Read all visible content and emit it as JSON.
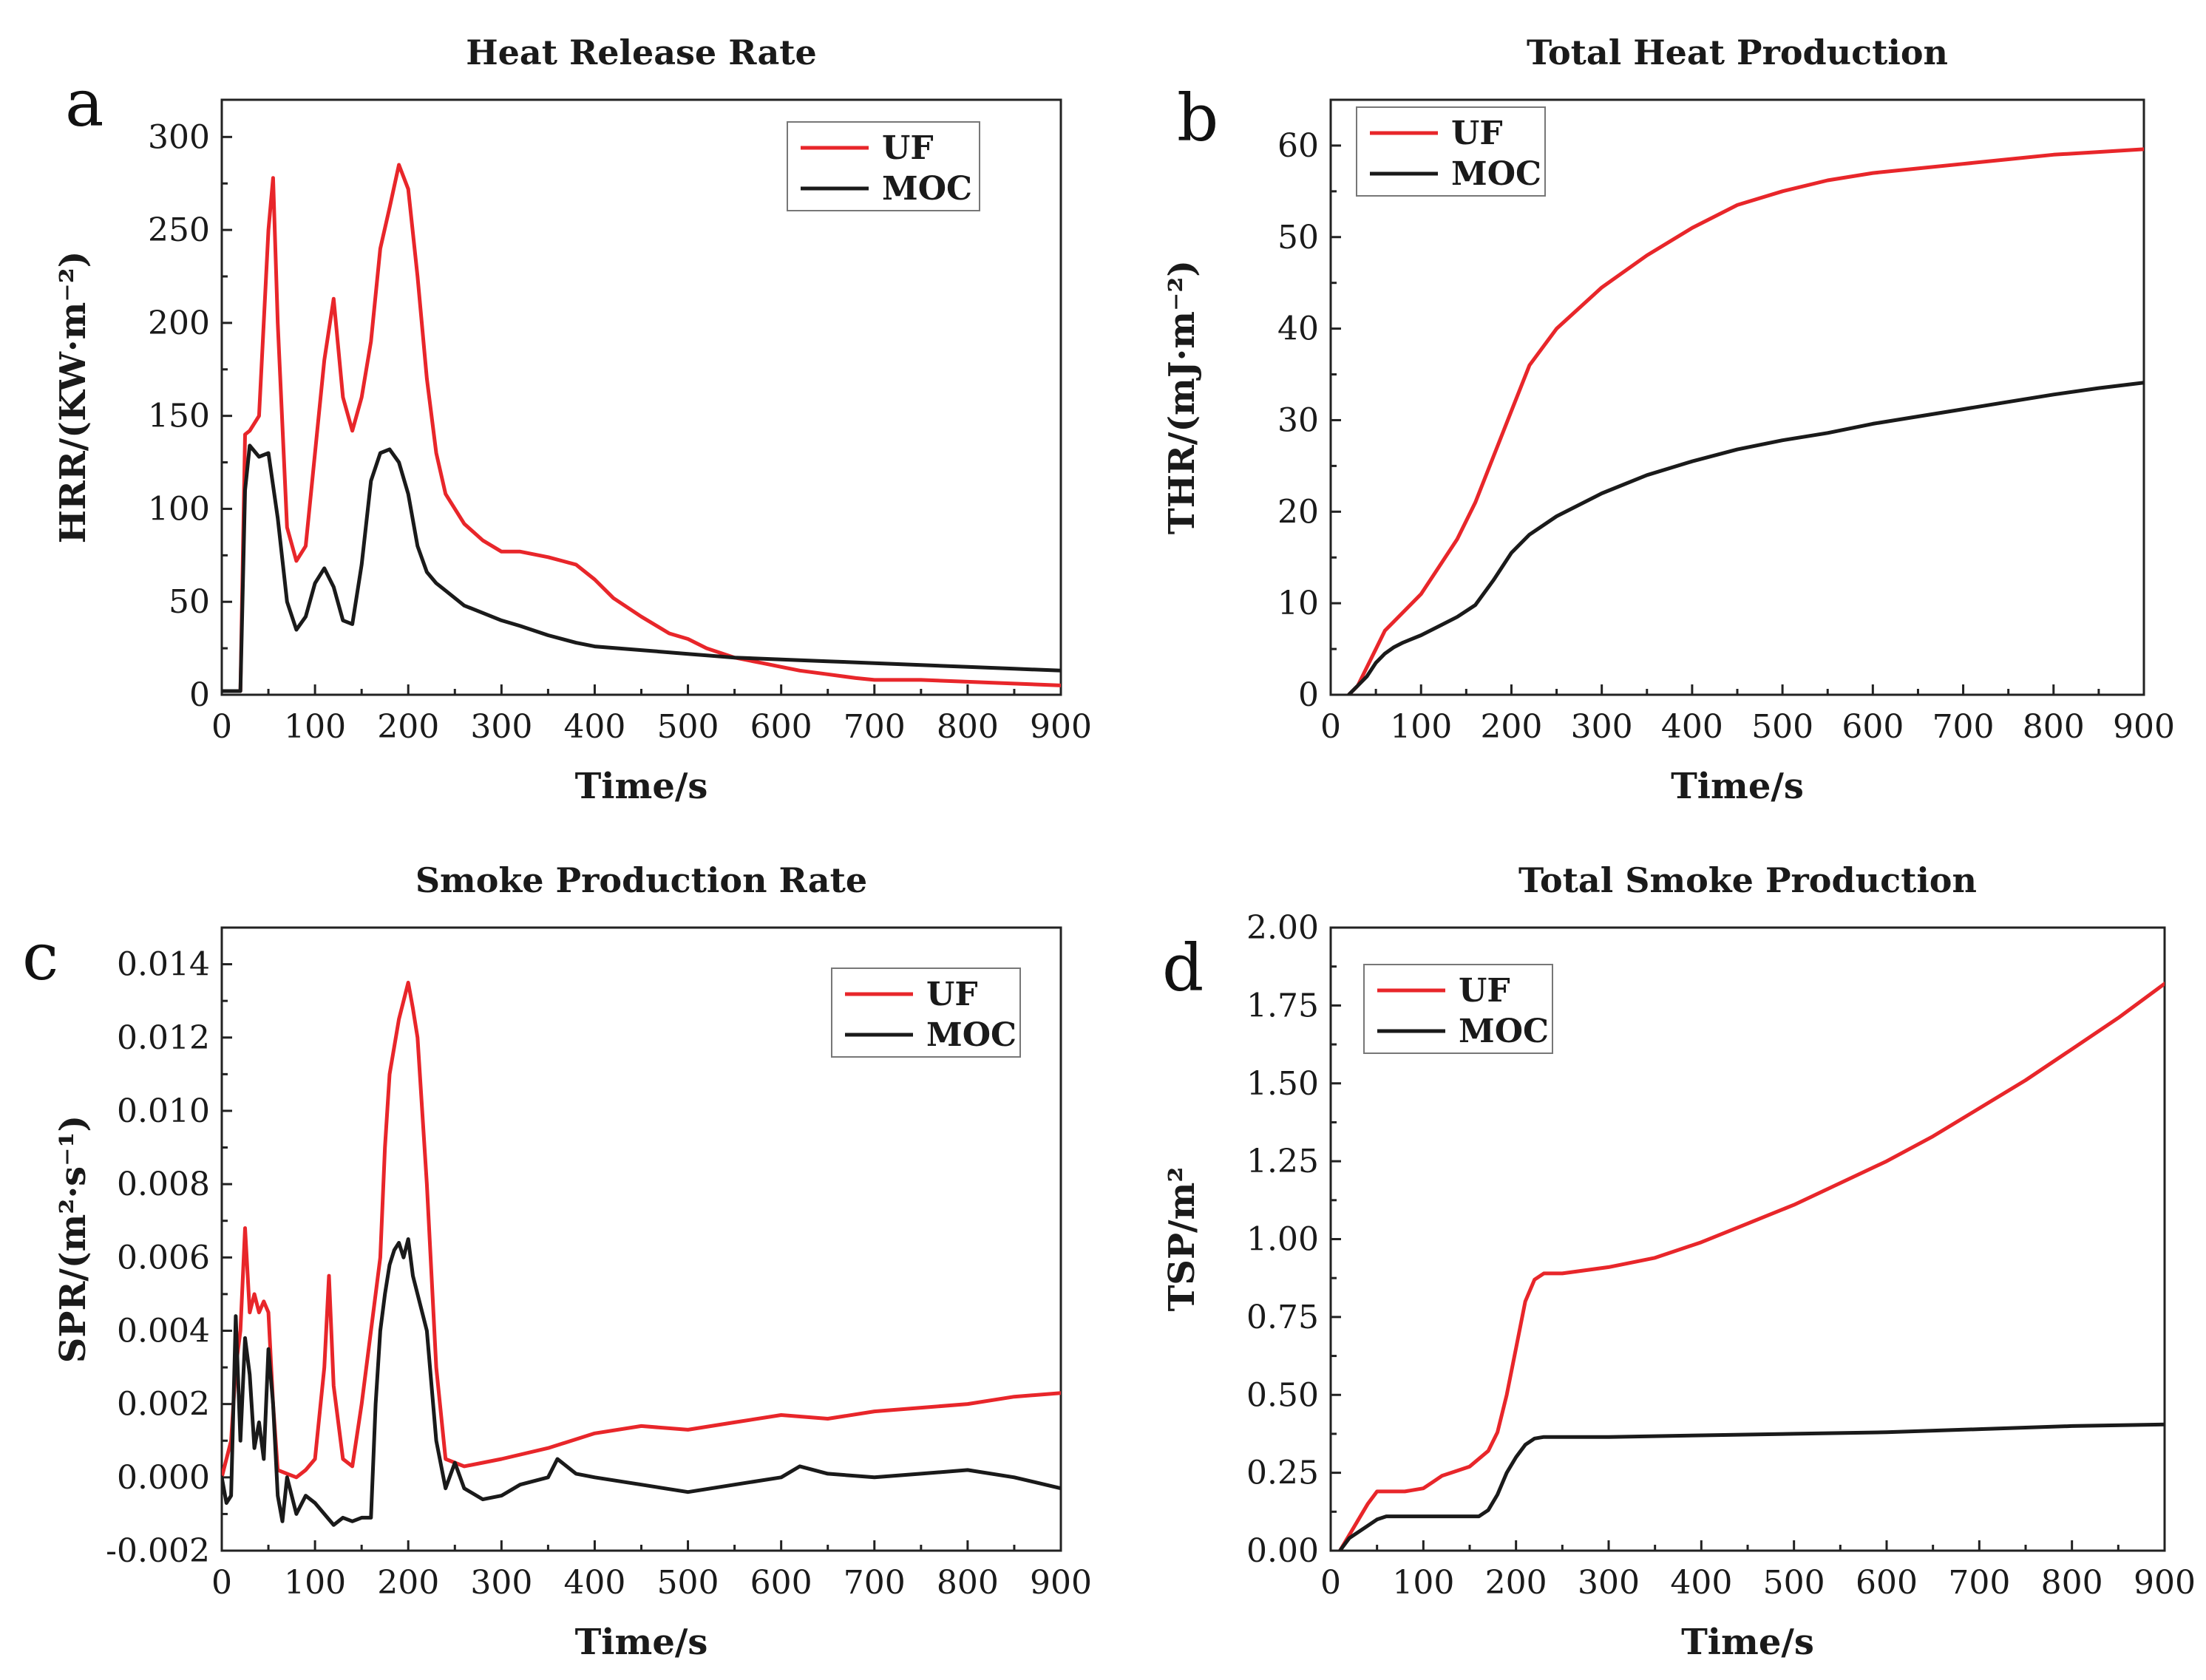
{
  "colors": {
    "uf": "#e8262a",
    "moc": "#1a1a1a"
  },
  "chart_data": [
    {
      "id": "a",
      "panel_label": "a",
      "type": "line",
      "title": "Heat Release Rate",
      "xlabel": "Time/s",
      "ylabel": "HRR/(KW·m⁻²)",
      "xlim": [
        0,
        900
      ],
      "ylim": [
        0,
        320
      ],
      "xticks": [
        0,
        100,
        200,
        300,
        400,
        500,
        600,
        700,
        800,
        900
      ],
      "yticks": [
        0,
        50,
        100,
        150,
        200,
        250,
        300
      ],
      "tick_decimals": 0,
      "legend": "top-right",
      "series": [
        {
          "name": "UF",
          "color_key": "uf",
          "x": [
            0,
            20,
            25,
            30,
            40,
            50,
            55,
            60,
            70,
            80,
            90,
            100,
            110,
            120,
            130,
            140,
            150,
            160,
            170,
            180,
            190,
            200,
            210,
            220,
            230,
            240,
            250,
            260,
            280,
            300,
            320,
            350,
            380,
            400,
            420,
            450,
            480,
            500,
            520,
            550,
            580,
            600,
            620,
            650,
            680,
            700,
            750,
            800,
            850,
            900
          ],
          "y": [
            2,
            2,
            140,
            142,
            150,
            250,
            278,
            200,
            90,
            72,
            80,
            130,
            180,
            213,
            160,
            142,
            160,
            190,
            240,
            262,
            285,
            272,
            225,
            170,
            130,
            108,
            100,
            92,
            83,
            77,
            77,
            74,
            70,
            62,
            52,
            42,
            33,
            30,
            25,
            20,
            17,
            15,
            13,
            11,
            9,
            8,
            8,
            7,
            6,
            5
          ]
        },
        {
          "name": "MOC",
          "color_key": "moc",
          "x": [
            0,
            20,
            25,
            30,
            40,
            50,
            60,
            70,
            80,
            90,
            100,
            110,
            120,
            130,
            140,
            150,
            160,
            170,
            180,
            190,
            200,
            210,
            220,
            230,
            240,
            250,
            260,
            280,
            300,
            320,
            350,
            380,
            400,
            450,
            500,
            550,
            600,
            650,
            700,
            750,
            800,
            850,
            900
          ],
          "y": [
            2,
            2,
            110,
            134,
            128,
            130,
            95,
            50,
            35,
            42,
            60,
            68,
            58,
            40,
            38,
            70,
            115,
            130,
            132,
            125,
            108,
            80,
            66,
            60,
            56,
            52,
            48,
            44,
            40,
            37,
            32,
            28,
            26,
            24,
            22,
            20,
            19,
            18,
            17,
            16,
            15,
            14,
            13
          ]
        }
      ]
    },
    {
      "id": "b",
      "panel_label": "b",
      "type": "line",
      "title": "Total Heat Production",
      "xlabel": "Time/s",
      "ylabel": "THR/(mJ·m⁻²)",
      "xlim": [
        0,
        900
      ],
      "ylim": [
        0,
        65
      ],
      "xticks": [
        0,
        100,
        200,
        300,
        400,
        500,
        600,
        700,
        800,
        900
      ],
      "yticks": [
        0,
        10,
        20,
        30,
        40,
        50,
        60
      ],
      "tick_decimals": 0,
      "legend": "top-left",
      "series": [
        {
          "name": "UF",
          "color_key": "uf",
          "x": [
            20,
            30,
            40,
            50,
            60,
            70,
            80,
            100,
            120,
            140,
            160,
            180,
            200,
            220,
            250,
            300,
            350,
            400,
            450,
            500,
            550,
            600,
            650,
            700,
            750,
            800,
            850,
            900
          ],
          "y": [
            0,
            1,
            3,
            5,
            7,
            8,
            9,
            11,
            14,
            17,
            21,
            26,
            31,
            36,
            40,
            44.5,
            48,
            51,
            53.5,
            55,
            56.2,
            57,
            57.5,
            58,
            58.5,
            59,
            59.3,
            59.6
          ]
        },
        {
          "name": "MOC",
          "color_key": "moc",
          "x": [
            20,
            30,
            40,
            50,
            60,
            70,
            80,
            100,
            120,
            140,
            160,
            180,
            200,
            220,
            250,
            300,
            350,
            400,
            450,
            500,
            550,
            600,
            650,
            700,
            750,
            800,
            850,
            900
          ],
          "y": [
            0,
            1,
            2,
            3.5,
            4.5,
            5.2,
            5.7,
            6.5,
            7.5,
            8.5,
            9.8,
            12.5,
            15.5,
            17.5,
            19.5,
            22,
            24,
            25.5,
            26.8,
            27.8,
            28.6,
            29.6,
            30.4,
            31.2,
            32,
            32.8,
            33.5,
            34.1
          ]
        }
      ]
    },
    {
      "id": "c",
      "panel_label": "c",
      "type": "line",
      "title": "Smoke Production Rate",
      "xlabel": "Time/s",
      "ylabel": "SPR/(m²·s⁻¹)",
      "xlim": [
        0,
        900
      ],
      "ylim": [
        -0.002,
        0.015
      ],
      "xticks": [
        0,
        100,
        200,
        300,
        400,
        500,
        600,
        700,
        800,
        900
      ],
      "yticks": [
        -0.002,
        0.0,
        0.002,
        0.004,
        0.006,
        0.008,
        0.01,
        0.012,
        0.014
      ],
      "tick_decimals": 3,
      "legend": "top-right",
      "series": [
        {
          "name": "UF",
          "color_key": "uf",
          "x": [
            0,
            10,
            15,
            20,
            25,
            30,
            35,
            40,
            45,
            50,
            55,
            60,
            70,
            80,
            90,
            100,
            110,
            115,
            120,
            130,
            140,
            150,
            160,
            170,
            175,
            180,
            190,
            195,
            200,
            205,
            210,
            220,
            230,
            240,
            260,
            280,
            300,
            350,
            400,
            450,
            500,
            550,
            600,
            650,
            700,
            750,
            800,
            850,
            900
          ],
          "y": [
            0,
            0.001,
            0.003,
            0.004,
            0.0068,
            0.0045,
            0.005,
            0.0045,
            0.0048,
            0.0045,
            0.002,
            0.0002,
            0.0001,
            0,
            0.0002,
            0.0005,
            0.003,
            0.0055,
            0.0025,
            0.0005,
            0.0003,
            0.002,
            0.004,
            0.006,
            0.009,
            0.011,
            0.0125,
            0.013,
            0.0135,
            0.0128,
            0.012,
            0.008,
            0.003,
            0.0005,
            0.0003,
            0.0004,
            0.0005,
            0.0008,
            0.0012,
            0.0014,
            0.0013,
            0.0015,
            0.0017,
            0.0016,
            0.0018,
            0.0019,
            0.002,
            0.0022,
            0.0023
          ]
        },
        {
          "name": "MOC",
          "color_key": "moc",
          "x": [
            0,
            5,
            10,
            15,
            20,
            25,
            30,
            35,
            40,
            45,
            50,
            55,
            60,
            65,
            70,
            80,
            90,
            100,
            110,
            120,
            130,
            140,
            150,
            160,
            165,
            170,
            175,
            180,
            185,
            190,
            195,
            200,
            205,
            210,
            220,
            230,
            240,
            250,
            260,
            280,
            300,
            320,
            350,
            360,
            380,
            400,
            450,
            500,
            550,
            600,
            620,
            650,
            700,
            750,
            800,
            850,
            900
          ],
          "y": [
            0,
            -0.0007,
            -0.0005,
            0.0044,
            0.001,
            0.0038,
            0.0028,
            0.0008,
            0.0015,
            0.0005,
            0.0035,
            0.002,
            -0.0005,
            -0.0012,
            0,
            -0.001,
            -0.0005,
            -0.0007,
            -0.001,
            -0.0013,
            -0.0011,
            -0.0012,
            -0.0011,
            -0.0011,
            0.002,
            0.004,
            0.005,
            0.0058,
            0.0062,
            0.0064,
            0.006,
            0.0065,
            0.0055,
            0.005,
            0.004,
            0.001,
            -0.0003,
            0.0004,
            -0.0003,
            -0.0006,
            -0.0005,
            -0.0002,
            0,
            0.0005,
            0.0001,
            0,
            -0.0002,
            -0.0004,
            -0.0002,
            0,
            0.0003,
            0.0001,
            0,
            0.0001,
            0.0002,
            0,
            -0.0003
          ]
        }
      ]
    },
    {
      "id": "d",
      "panel_label": "d",
      "type": "line",
      "title": "Total Smoke Production",
      "xlabel": "Time/s",
      "ylabel": "TSP/m²",
      "xlim": [
        0,
        900
      ],
      "ylim": [
        0,
        2.0
      ],
      "xticks": [
        0,
        100,
        200,
        300,
        400,
        500,
        600,
        700,
        800,
        900
      ],
      "yticks": [
        0,
        0.25,
        0.5,
        0.75,
        1.0,
        1.25,
        1.5,
        1.75,
        2.0
      ],
      "tick_decimals": 2,
      "legend": "top-left",
      "series": [
        {
          "name": "UF",
          "color_key": "uf",
          "x": [
            10,
            20,
            30,
            40,
            50,
            60,
            80,
            100,
            110,
            120,
            130,
            150,
            170,
            180,
            190,
            200,
            210,
            220,
            230,
            250,
            300,
            350,
            400,
            450,
            500,
            550,
            600,
            650,
            700,
            750,
            800,
            850,
            900
          ],
          "y": [
            0,
            0.05,
            0.1,
            0.15,
            0.19,
            0.19,
            0.19,
            0.2,
            0.22,
            0.24,
            0.25,
            0.27,
            0.32,
            0.38,
            0.5,
            0.65,
            0.8,
            0.87,
            0.89,
            0.89,
            0.91,
            0.94,
            0.99,
            1.05,
            1.11,
            1.18,
            1.25,
            1.33,
            1.42,
            1.51,
            1.61,
            1.71,
            1.82
          ]
        },
        {
          "name": "MOC",
          "color_key": "moc",
          "x": [
            10,
            20,
            30,
            40,
            50,
            60,
            80,
            100,
            120,
            140,
            160,
            170,
            180,
            190,
            200,
            210,
            220,
            230,
            250,
            300,
            400,
            500,
            600,
            700,
            800,
            900
          ],
          "y": [
            0,
            0.04,
            0.06,
            0.08,
            0.1,
            0.11,
            0.11,
            0.11,
            0.11,
            0.11,
            0.11,
            0.13,
            0.18,
            0.25,
            0.3,
            0.34,
            0.36,
            0.365,
            0.365,
            0.365,
            0.37,
            0.375,
            0.38,
            0.39,
            0.4,
            0.405
          ]
        }
      ]
    }
  ]
}
